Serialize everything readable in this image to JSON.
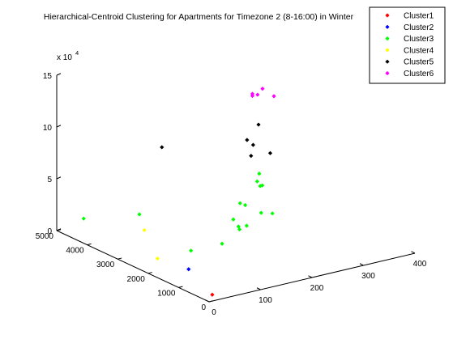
{
  "chart_data": {
    "type": "scatter",
    "title": "Hierarchical-Centroid Clustering  for Apartments for Timezone 2 (8-16:00) in Winter",
    "xlabel": "",
    "ylabel": "",
    "zlabel": "",
    "z_multiplier_label": "x 10",
    "z_multiplier_exponent": "4",
    "xlim": [
      0,
      400
    ],
    "ylim": [
      0,
      5000
    ],
    "zlim": [
      0,
      150000
    ],
    "x_ticks": [
      "0",
      "100",
      "200",
      "300",
      "400"
    ],
    "y_ticks": [
      "0",
      "1000",
      "2000",
      "3000",
      "4000",
      "5000"
    ],
    "z_ticks": [
      "0",
      "5",
      "10",
      "15"
    ],
    "grid": false,
    "legend_position": "top-right",
    "series": [
      {
        "name": "Cluster1",
        "color": "#ff0000",
        "points": [
          [
            18,
            200,
            2000
          ]
        ]
      },
      {
        "name": "Cluster2",
        "color": "#0000ff",
        "points": [
          [
            55,
            1600,
            3000
          ]
        ]
      },
      {
        "name": "Cluster3",
        "color": "#00ff00",
        "points": [
          [
            5,
            4200,
            22000
          ],
          [
            95,
            2200,
            8000
          ],
          [
            60,
            3300,
            32000
          ],
          [
            120,
            1600,
            20000
          ],
          [
            150,
            1300,
            38000
          ],
          [
            130,
            1400,
            45000
          ],
          [
            140,
            1400,
            37000
          ],
          [
            145,
            1450,
            33000
          ],
          [
            155,
            1600,
            55000
          ],
          [
            165,
            1600,
            52000
          ],
          [
            190,
            1500,
            43000
          ],
          [
            200,
            1300,
            44000
          ],
          [
            200,
            1700,
            65000
          ],
          [
            200,
            1800,
            68000
          ],
          [
            210,
            1800,
            63000
          ],
          [
            210,
            1900,
            73000
          ]
        ]
      },
      {
        "name": "Cluster4",
        "color": "#ffff00",
        "points": [
          [
            30,
            2200,
            8000
          ],
          [
            40,
            2800,
            26000
          ]
        ]
      },
      {
        "name": "Cluster5",
        "color": "#000000",
        "points": [
          [
            80,
            2900,
            100000
          ],
          [
            210,
            2100,
            98000
          ],
          [
            200,
            2000,
            90000
          ],
          [
            210,
            2300,
            100000
          ],
          [
            250,
            2600,
            106000
          ],
          [
            255,
            2300,
            82000
          ]
        ]
      },
      {
        "name": "Cluster6",
        "color": "#ff00ff",
        "points": [
          [
            250,
            2800,
            131000
          ],
          [
            260,
            2800,
            131000
          ],
          [
            250,
            2800,
            133000
          ],
          [
            280,
            2600,
            130000
          ],
          [
            240,
            2300,
            146000
          ]
        ]
      }
    ]
  },
  "legend": {
    "entries": [
      "Cluster1",
      "Cluster2",
      "Cluster3",
      "Cluster4",
      "Cluster5",
      "Cluster6"
    ]
  }
}
